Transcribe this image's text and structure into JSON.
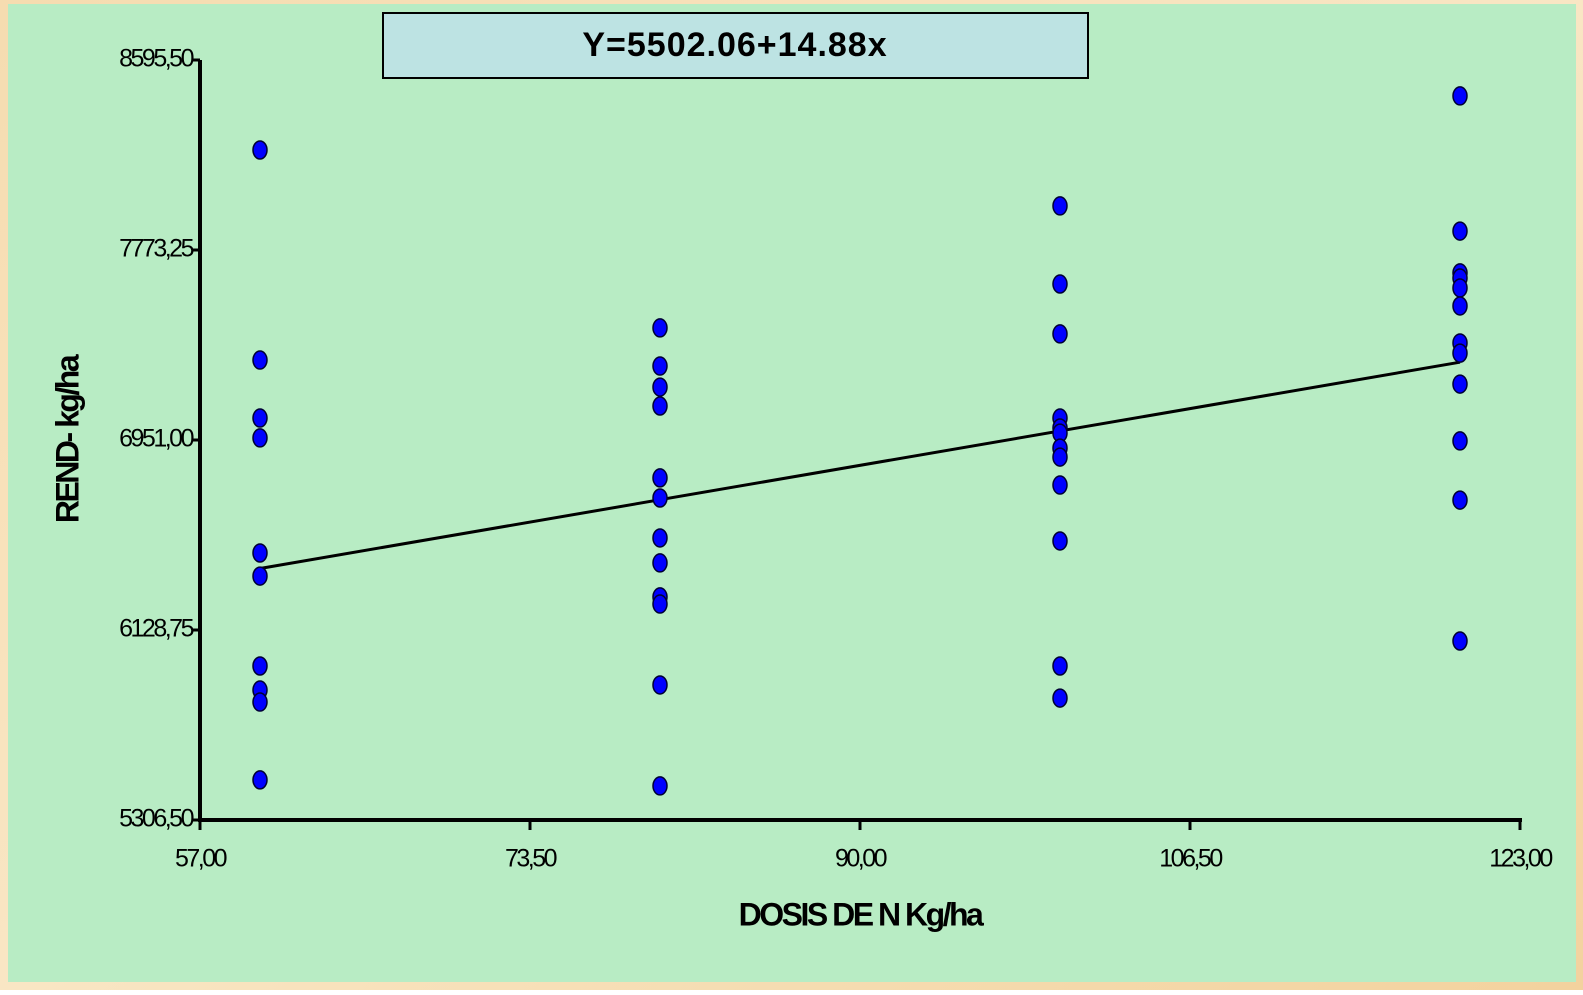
{
  "chart_data": {
    "type": "scatter",
    "title": "Y=5502.06+14.88x",
    "x_label": "DOSIS DE N Kg/ha",
    "y_label": "REND- kg/ha",
    "xlim": [
      57,
      123
    ],
    "ylim": [
      5306.5,
      8595.5
    ],
    "xticks": [
      {
        "value": 57,
        "label": "57,00"
      },
      {
        "value": 73.5,
        "label": "73,50"
      },
      {
        "value": 90,
        "label": "90,00"
      },
      {
        "value": 106.5,
        "label": "106,50"
      },
      {
        "value": 123,
        "label": "123,00"
      }
    ],
    "yticks": [
      {
        "value": 5306.5,
        "label": "5306,50"
      },
      {
        "value": 6128.75,
        "label": "6128,75"
      },
      {
        "value": 6951,
        "label": "6951,00"
      },
      {
        "value": 7773.25,
        "label": "7773,25"
      },
      {
        "value": 8595.5,
        "label": "8595,50"
      }
    ],
    "series": [
      {
        "color": "#0000ff",
        "x": [
          60,
          60,
          60,
          60,
          60,
          60,
          60,
          60,
          60,
          60,
          80,
          80,
          80,
          80,
          80,
          80,
          80,
          80,
          80,
          80,
          80,
          80,
          100,
          100,
          100,
          100,
          100,
          100,
          100,
          100,
          100,
          100,
          100,
          100,
          120,
          120,
          120,
          120,
          120,
          120,
          120,
          120,
          120,
          120,
          120,
          120
        ],
        "values": [
          8206,
          7297,
          7046,
          6960,
          6462,
          6362,
          5973,
          5869,
          5817,
          5480,
          7436,
          7271,
          7180,
          7098,
          6787,
          6700,
          6527,
          6419,
          6272,
          6241,
          5891,
          5454,
          7964,
          7626,
          7410,
          7046,
          7003,
          6981,
          6916,
          6877,
          6756,
          6514,
          5973,
          5834,
          8440,
          7855,
          7674,
          7652,
          7609,
          7531,
          7371,
          7327,
          7193,
          6947,
          6691,
          6081
        ]
      }
    ],
    "trendline": {
      "color": "#000000",
      "x": [
        60,
        120
      ],
      "values": [
        6394.86,
        7287.66
      ]
    }
  }
}
